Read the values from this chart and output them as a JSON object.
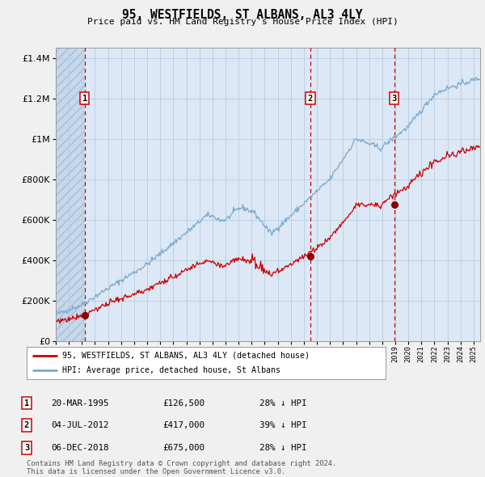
{
  "title": "95, WESTFIELDS, ST ALBANS, AL3 4LY",
  "subtitle": "Price paid vs. HM Land Registry's House Price Index (HPI)",
  "legend_line1": "95, WESTFIELDS, ST ALBANS, AL3 4LY (detached house)",
  "legend_line2": "HPI: Average price, detached house, St Albans",
  "footer1": "Contains HM Land Registry data © Crown copyright and database right 2024.",
  "footer2": "This data is licensed under the Open Government Licence v3.0.",
  "transactions": [
    {
      "num": 1,
      "date": "20-MAR-1995",
      "price": 126500,
      "pct": "28%",
      "x_year": 1995.21
    },
    {
      "num": 2,
      "date": "04-JUL-2012",
      "price": 417000,
      "pct": "39%",
      "x_year": 2012.5
    },
    {
      "num": 3,
      "date": "06-DEC-2018",
      "price": 675000,
      "pct": "28%",
      "x_year": 2018.92
    }
  ],
  "ylim": [
    0,
    1450000
  ],
  "xlim_start": 1993.0,
  "xlim_end": 2025.5,
  "hatch_end": 1995.21,
  "fig_bg": "#f0f0f0",
  "plot_bg": "#dce8f5",
  "grid_color": "#b8cce0",
  "red_line_color": "#cc0000",
  "blue_line_color": "#7aa8d0",
  "dot_color": "#880000",
  "dashed_color": "#cc0000"
}
